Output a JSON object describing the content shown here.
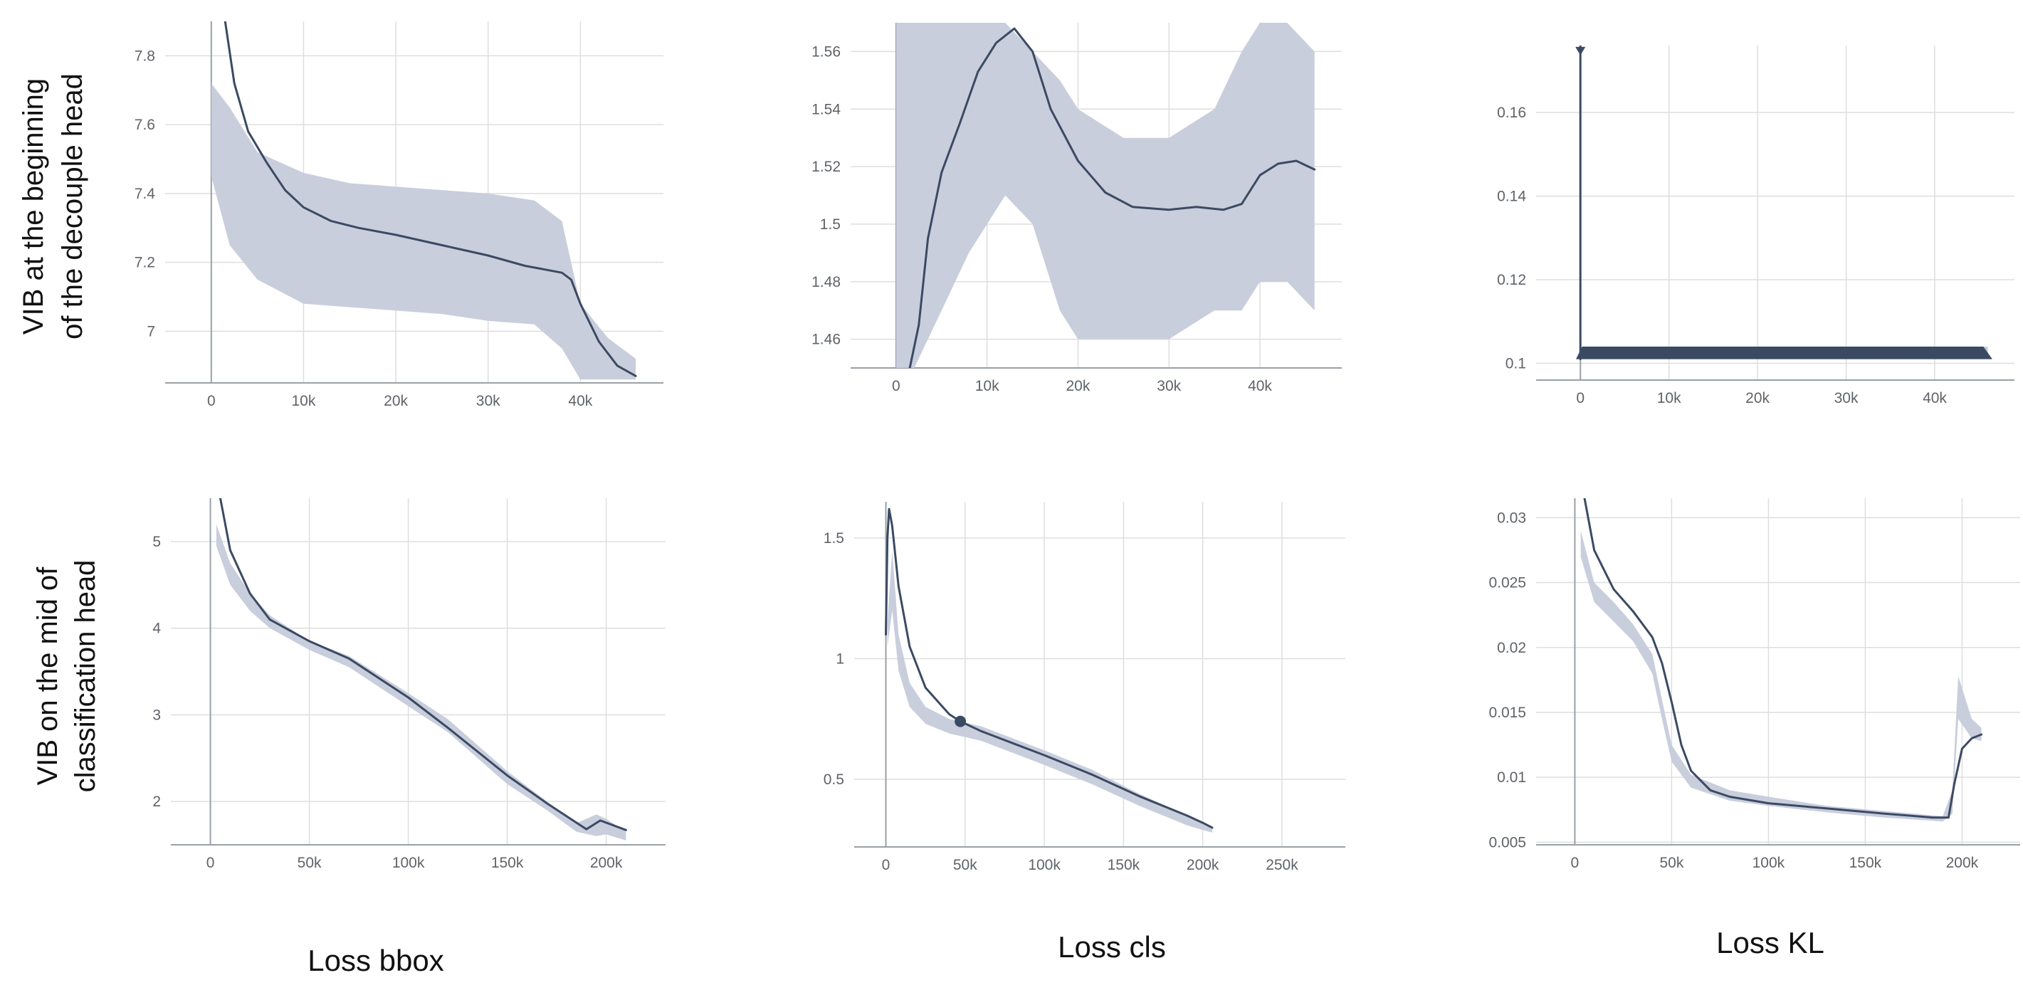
{
  "row_labels": [
    [
      "VIB at the beginning",
      "of the decouple head"
    ],
    [
      "VIB on the mid of",
      "classification head"
    ]
  ],
  "column_labels": [
    "Loss bbox",
    "Loss cls",
    "Loss KL"
  ],
  "colors": {
    "smoothed": "#3b4a63",
    "raw": "#c6cbdb",
    "grid": "#dedede",
    "axis": "#9aa0a6"
  },
  "chart_data": [
    {
      "type": "line",
      "row": "VIB at the beginning of the decouple head",
      "column": "Loss bbox",
      "xlim": [
        -5000,
        49000
      ],
      "ylim": [
        6.85,
        7.9
      ],
      "x_ticks": [
        0,
        10000,
        20000,
        30000,
        40000
      ],
      "x_tick_labels": [
        "0",
        "10k",
        "20k",
        "30k",
        "40k"
      ],
      "y_ticks": [
        7,
        7.2,
        7.4,
        7.6,
        7.8
      ],
      "y_tick_labels": [
        "7",
        "7.2",
        "7.4",
        "7.6",
        "7.8"
      ],
      "grid": true,
      "series": [
        {
          "role": "raw",
          "band": {
            "x": [
              0,
              2000,
              5000,
              10000,
              15000,
              20000,
              25000,
              30000,
              35000,
              38000,
              40000,
              43000,
              46000
            ],
            "lower": [
              7.45,
              7.25,
              7.15,
              7.08,
              7.07,
              7.06,
              7.05,
              7.03,
              7.02,
              6.95,
              6.86,
              6.86,
              6.86
            ],
            "upper": [
              7.72,
              7.65,
              7.52,
              7.46,
              7.43,
              7.42,
              7.41,
              7.4,
              7.38,
              7.32,
              7.08,
              6.98,
              6.92
            ]
          }
        },
        {
          "role": "smoothed",
          "x": [
            1500,
            2500,
            4000,
            6000,
            8000,
            10000,
            13000,
            16000,
            20000,
            25000,
            30000,
            34000,
            36000,
            38000,
            39000,
            40000,
            42000,
            44000,
            46000
          ],
          "y": [
            7.9,
            7.72,
            7.58,
            7.49,
            7.41,
            7.36,
            7.32,
            7.3,
            7.28,
            7.25,
            7.22,
            7.19,
            7.18,
            7.17,
            7.15,
            7.08,
            6.97,
            6.9,
            6.87
          ]
        }
      ]
    },
    {
      "type": "line",
      "row": "VIB at the beginning of the decouple head",
      "column": "Loss cls",
      "xlim": [
        -5000,
        49000
      ],
      "ylim": [
        1.45,
        1.57
      ],
      "x_ticks": [
        0,
        10000,
        20000,
        30000,
        40000
      ],
      "x_tick_labels": [
        "0",
        "10k",
        "20k",
        "30k",
        "40k"
      ],
      "y_ticks": [
        1.46,
        1.48,
        1.5,
        1.52,
        1.54,
        1.56
      ],
      "y_tick_labels": [
        "1.46",
        "1.48",
        "1.5",
        "1.52",
        "1.54",
        "1.56"
      ],
      "grid": true,
      "series": [
        {
          "role": "raw",
          "band": {
            "x": [
              0,
              2000,
              5000,
              8000,
              10000,
              12000,
              15000,
              18000,
              20000,
              25000,
              30000,
              35000,
              38000,
              40000,
              43000,
              46000
            ],
            "lower": [
              1.45,
              1.45,
              1.47,
              1.49,
              1.5,
              1.51,
              1.5,
              1.47,
              1.46,
              1.46,
              1.46,
              1.47,
              1.47,
              1.48,
              1.48,
              1.47
            ],
            "upper": [
              1.57,
              1.57,
              1.57,
              1.57,
              1.57,
              1.57,
              1.56,
              1.55,
              1.54,
              1.53,
              1.53,
              1.54,
              1.56,
              1.57,
              1.57,
              1.56
            ]
          }
        },
        {
          "role": "smoothed",
          "x": [
            1500,
            2500,
            3500,
            5000,
            7000,
            9000,
            11000,
            13000,
            15000,
            17000,
            20000,
            23000,
            26000,
            30000,
            33000,
            36000,
            38000,
            40000,
            42000,
            44000,
            46000
          ],
          "y": [
            1.45,
            1.465,
            1.495,
            1.518,
            1.535,
            1.553,
            1.563,
            1.568,
            1.56,
            1.54,
            1.522,
            1.511,
            1.506,
            1.505,
            1.506,
            1.505,
            1.507,
            1.517,
            1.521,
            1.522,
            1.519
          ]
        }
      ]
    },
    {
      "type": "line",
      "row": "VIB at the beginning of the decouple head",
      "column": "Loss KL",
      "xlim": [
        -5000,
        49000
      ],
      "ylim": [
        0.096,
        0.176
      ],
      "x_ticks": [
        0,
        10000,
        20000,
        30000,
        40000
      ],
      "x_tick_labels": [
        "0",
        "10k",
        "20k",
        "30k",
        "40k"
      ],
      "y_ticks": [
        0.1,
        0.12,
        0.14,
        0.16
      ],
      "y_tick_labels": [
        "0.1",
        "0.12",
        "0.14",
        "0.16"
      ],
      "grid": true,
      "series": [
        {
          "role": "raw",
          "band": {
            "x": [
              200,
              46000
            ],
            "lower": [
              0.101,
              0.101
            ],
            "upper": [
              0.104,
              0.104
            ]
          }
        },
        {
          "role": "smoothed",
          "x": [
            0,
            0,
            300,
            46000
          ],
          "y": [
            0.176,
            0.101,
            0.103,
            0.102
          ],
          "band": {
            "x": [
              -500,
              200,
              45500,
              46500
            ],
            "lower": [
              0.101,
              0.101,
              0.101,
              0.101
            ],
            "upper": [
              0.101,
              0.104,
              0.104,
              0.101
            ]
          },
          "spike": {
            "x": 0,
            "y": 0.175
          }
        }
      ]
    },
    {
      "type": "line",
      "row": "VIB on the mid of classification head",
      "column": "Loss bbox",
      "xlim": [
        -20000,
        230000
      ],
      "ylim": [
        1.5,
        5.5
      ],
      "x_ticks": [
        0,
        50000,
        100000,
        150000,
        200000
      ],
      "x_tick_labels": [
        "0",
        "50k",
        "100k",
        "150k",
        "200k"
      ],
      "y_ticks": [
        2,
        3,
        4,
        5
      ],
      "y_tick_labels": [
        "2",
        "3",
        "4",
        "5"
      ],
      "grid": true,
      "series": [
        {
          "role": "raw",
          "band": {
            "x": [
              3000,
              10000,
              20000,
              30000,
              50000,
              70000,
              100000,
              120000,
              150000,
              170000,
              185000,
              195000,
              200000,
              210000
            ],
            "lower": [
              4.95,
              4.5,
              4.2,
              4.0,
              3.75,
              3.55,
              3.1,
              2.8,
              2.2,
              1.9,
              1.65,
              1.6,
              1.62,
              1.55
            ],
            "upper": [
              5.2,
              4.75,
              4.4,
              4.15,
              3.85,
              3.68,
              3.25,
              2.95,
              2.35,
              2.0,
              1.75,
              1.85,
              1.8,
              1.65
            ]
          }
        },
        {
          "role": "smoothed",
          "x": [
            5000,
            10000,
            20000,
            30000,
            50000,
            70000,
            100000,
            120000,
            150000,
            170000,
            190000,
            197000,
            203000,
            210000
          ],
          "y": [
            5.5,
            4.9,
            4.4,
            4.1,
            3.85,
            3.65,
            3.2,
            2.85,
            2.3,
            1.98,
            1.68,
            1.78,
            1.73,
            1.67
          ]
        }
      ]
    },
    {
      "type": "line",
      "row": "VIB on the mid of classification head",
      "column": "Loss cls",
      "xlim": [
        -20000,
        290000
      ],
      "ylim": [
        0.22,
        1.65
      ],
      "x_ticks": [
        0,
        50000,
        100000,
        150000,
        200000,
        250000
      ],
      "x_tick_labels": [
        "0",
        "50k",
        "100k",
        "150k",
        "200k",
        "250k"
      ],
      "y_ticks": [
        0.5,
        1,
        1.5
      ],
      "y_tick_labels": [
        "0.5",
        "1",
        "1.5"
      ],
      "grid": true,
      "series": [
        {
          "role": "raw",
          "band": {
            "x": [
              1000,
              4000,
              8000,
              15000,
              25000,
              40000,
              60000,
              80000,
              100000,
              130000,
              160000,
              190000,
              200000,
              206000
            ],
            "lower": [
              1.05,
              1.2,
              0.95,
              0.8,
              0.73,
              0.69,
              0.66,
              0.61,
              0.56,
              0.48,
              0.39,
              0.31,
              0.29,
              0.28
            ],
            "upper": [
              1.15,
              1.45,
              1.1,
              0.9,
              0.8,
              0.75,
              0.72,
              0.67,
              0.62,
              0.54,
              0.44,
              0.35,
              0.32,
              0.3
            ]
          }
        },
        {
          "role": "smoothed",
          "x": [
            0,
            1000,
            2000,
            4000,
            8000,
            15000,
            25000,
            40000,
            47000,
            60000,
            80000,
            100000,
            130000,
            160000,
            190000,
            200000,
            206000
          ],
          "y": [
            1.1,
            1.5,
            1.62,
            1.55,
            1.3,
            1.05,
            0.88,
            0.77,
            0.74,
            0.7,
            0.65,
            0.6,
            0.52,
            0.43,
            0.35,
            0.32,
            0.3
          ],
          "marker": {
            "x": 47000,
            "y": 0.74
          }
        }
      ]
    },
    {
      "type": "line",
      "row": "VIB on the mid of classification head",
      "column": "Loss KL",
      "xlim": [
        -20000,
        230000
      ],
      "ylim": [
        0.0048,
        0.0315
      ],
      "x_ticks": [
        0,
        50000,
        100000,
        150000,
        200000
      ],
      "x_tick_labels": [
        "0",
        "50k",
        "100k",
        "150k",
        "200k"
      ],
      "y_ticks": [
        0.005,
        0.01,
        0.015,
        0.02,
        0.025,
        0.03
      ],
      "y_tick_labels": [
        "0.005",
        "0.01",
        "0.015",
        "0.02",
        "0.025",
        "0.03"
      ],
      "grid": true,
      "series": [
        {
          "role": "raw",
          "band": {
            "x": [
              3000,
              10000,
              20000,
              30000,
              40000,
              45000,
              50000,
              60000,
              80000,
              100000,
              130000,
              160000,
              190000,
              195000,
              198000,
              205000,
              210000
            ],
            "lower": [
              0.027,
              0.0235,
              0.022,
              0.0205,
              0.018,
              0.0145,
              0.0112,
              0.0092,
              0.0082,
              0.0078,
              0.0073,
              0.0069,
              0.0066,
              0.0072,
              0.0145,
              0.013,
              0.0128
            ],
            "upper": [
              0.029,
              0.025,
              0.0235,
              0.0218,
              0.0195,
              0.016,
              0.0125,
              0.0102,
              0.009,
              0.0085,
              0.0078,
              0.0074,
              0.007,
              0.009,
              0.0178,
              0.0145,
              0.0138
            ]
          }
        },
        {
          "role": "smoothed",
          "x": [
            5000,
            10000,
            20000,
            30000,
            40000,
            45000,
            50000,
            55000,
            60000,
            70000,
            80000,
            100000,
            130000,
            160000,
            185000,
            193000,
            196000,
            200000,
            205000,
            210000
          ],
          "y": [
            0.0315,
            0.0275,
            0.0245,
            0.0228,
            0.0208,
            0.0188,
            0.0158,
            0.0125,
            0.0105,
            0.009,
            0.0085,
            0.008,
            0.0076,
            0.0072,
            0.0069,
            0.0069,
            0.0095,
            0.0122,
            0.013,
            0.0133
          ]
        }
      ]
    }
  ]
}
